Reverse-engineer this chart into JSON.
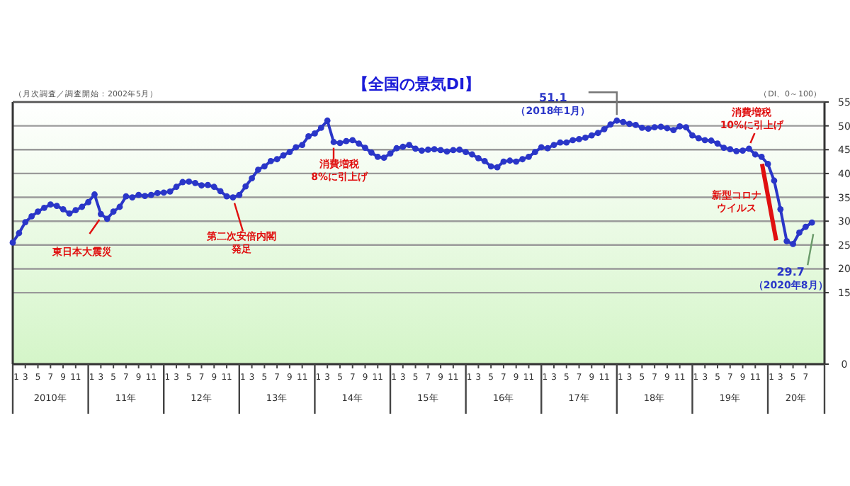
{
  "chart_data": {
    "type": "line",
    "title": "【全国の景気DI】",
    "subtitle": "（月次調査／調査開始：2002年5月）",
    "ylabel": "（DI、0～100）",
    "x": [
      "2010-01",
      "2010-02",
      "2010-03",
      "2010-04",
      "2010-05",
      "2010-06",
      "2010-07",
      "2010-08",
      "2010-09",
      "2010-10",
      "2010-11",
      "2010-12",
      "2011-01",
      "2011-02",
      "2011-03",
      "2011-04",
      "2011-05",
      "2011-06",
      "2011-07",
      "2011-08",
      "2011-09",
      "2011-10",
      "2011-11",
      "2011-12",
      "2012-01",
      "2012-02",
      "2012-03",
      "2012-04",
      "2012-05",
      "2012-06",
      "2012-07",
      "2012-08",
      "2012-09",
      "2012-10",
      "2012-11",
      "2012-12",
      "2013-01",
      "2013-02",
      "2013-03",
      "2013-04",
      "2013-05",
      "2013-06",
      "2013-07",
      "2013-08",
      "2013-09",
      "2013-10",
      "2013-11",
      "2013-12",
      "2014-01",
      "2014-02",
      "2014-03",
      "2014-04",
      "2014-05",
      "2014-06",
      "2014-07",
      "2014-08",
      "2014-09",
      "2014-10",
      "2014-11",
      "2014-12",
      "2015-01",
      "2015-02",
      "2015-03",
      "2015-04",
      "2015-05",
      "2015-06",
      "2015-07",
      "2015-08",
      "2015-09",
      "2015-10",
      "2015-11",
      "2015-12",
      "2016-01",
      "2016-02",
      "2016-03",
      "2016-04",
      "2016-05",
      "2016-06",
      "2016-07",
      "2016-08",
      "2016-09",
      "2016-10",
      "2016-11",
      "2016-12",
      "2017-01",
      "2017-02",
      "2017-03",
      "2017-04",
      "2017-05",
      "2017-06",
      "2017-07",
      "2017-08",
      "2017-09",
      "2017-10",
      "2017-11",
      "2017-12",
      "2018-01",
      "2018-02",
      "2018-03",
      "2018-04",
      "2018-05",
      "2018-06",
      "2018-07",
      "2018-08",
      "2018-09",
      "2018-10",
      "2018-11",
      "2018-12",
      "2019-01",
      "2019-02",
      "2019-03",
      "2019-04",
      "2019-05",
      "2019-06",
      "2019-07",
      "2019-08",
      "2019-09",
      "2019-10",
      "2019-11",
      "2019-12",
      "2020-01",
      "2020-02",
      "2020-03",
      "2020-04",
      "2020-05",
      "2020-06",
      "2020-07",
      "2020-08"
    ],
    "series": [
      {
        "color": "#2a36c8",
        "values": [
          25.5,
          27.5,
          29.8,
          31.0,
          32.0,
          32.8,
          33.5,
          33.2,
          32.5,
          31.6,
          32.3,
          33.0,
          34.0,
          35.6,
          31.5,
          30.5,
          32.0,
          33.0,
          35.2,
          35.0,
          35.5,
          35.3,
          35.5,
          35.9,
          36.0,
          36.2,
          37.2,
          38.2,
          38.3,
          38.0,
          37.5,
          37.6,
          37.2,
          36.3,
          35.2,
          35.0,
          35.5,
          37.3,
          39.0,
          40.8,
          41.5,
          42.6,
          43.0,
          43.8,
          44.5,
          45.5,
          46.0,
          47.8,
          48.4,
          49.6,
          51.1,
          46.6,
          46.4,
          46.8,
          47.0,
          46.3,
          45.4,
          44.4,
          43.5,
          43.3,
          44.2,
          45.3,
          45.6,
          46.0,
          45.2,
          44.8,
          45.0,
          45.1,
          44.9,
          44.6,
          44.9,
          45.0,
          44.5,
          44.0,
          43.2,
          42.6,
          41.5,
          41.3,
          42.5,
          42.7,
          42.5,
          43.0,
          43.5,
          44.5,
          45.5,
          45.3,
          46.0,
          46.5,
          46.5,
          47.0,
          47.2,
          47.5,
          48.0,
          48.5,
          49.3,
          50.3,
          51.1,
          50.8,
          50.4,
          50.2,
          49.6,
          49.4,
          49.7,
          49.8,
          49.5,
          49.1,
          49.9,
          49.7,
          48.0,
          47.4,
          47.0,
          46.9,
          46.3,
          45.4,
          45.1,
          44.7,
          44.8,
          45.2,
          44.0,
          43.5,
          42.0,
          38.5,
          32.5,
          25.8,
          25.2,
          27.6,
          28.8,
          29.7
        ]
      }
    ],
    "xlim": [
      "2010-01",
      "2020-10"
    ],
    "xticks": [
      {
        "value": "2010-01",
        "label": "1"
      },
      {
        "value": "2010-03",
        "label": "3"
      },
      {
        "value": "2010-05",
        "label": "5"
      },
      {
        "value": "2010-07",
        "label": "7"
      },
      {
        "value": "2010-09",
        "label": "9"
      },
      {
        "value": "2010-11",
        "label": "11"
      },
      {
        "value": "2011-01",
        "label": "1"
      },
      {
        "value": "2011-03",
        "label": "3"
      },
      {
        "value": "2011-05",
        "label": "5"
      },
      {
        "value": "2011-07",
        "label": "7"
      },
      {
        "value": "2011-09",
        "label": "9"
      },
      {
        "value": "2011-11",
        "label": "11"
      },
      {
        "value": "2012-01",
        "label": "1"
      },
      {
        "value": "2012-03",
        "label": "3"
      },
      {
        "value": "2012-05",
        "label": "5"
      },
      {
        "value": "2012-07",
        "label": "7"
      },
      {
        "value": "2012-09",
        "label": "9"
      },
      {
        "value": "2012-11",
        "label": "11"
      },
      {
        "value": "2013-01",
        "label": "1"
      },
      {
        "value": "2013-03",
        "label": "3"
      },
      {
        "value": "2013-05",
        "label": "5"
      },
      {
        "value": "2013-07",
        "label": "7"
      },
      {
        "value": "2013-09",
        "label": "9"
      },
      {
        "value": "2013-11",
        "label": "11"
      },
      {
        "value": "2014-01",
        "label": "1"
      },
      {
        "value": "2014-03",
        "label": "3"
      },
      {
        "value": "2014-05",
        "label": "5"
      },
      {
        "value": "2014-07",
        "label": "7"
      },
      {
        "value": "2014-09",
        "label": "9"
      },
      {
        "value": "2014-11",
        "label": "11"
      },
      {
        "value": "2015-01",
        "label": "1"
      },
      {
        "value": "2015-03",
        "label": "3"
      },
      {
        "value": "2015-05",
        "label": "5"
      },
      {
        "value": "2015-07",
        "label": "7"
      },
      {
        "value": "2015-09",
        "label": "9"
      },
      {
        "value": "2015-11",
        "label": "11"
      },
      {
        "value": "2016-01",
        "label": "1"
      },
      {
        "value": "2016-03",
        "label": "3"
      },
      {
        "value": "2016-05",
        "label": "5"
      },
      {
        "value": "2016-07",
        "label": "7"
      },
      {
        "value": "2016-09",
        "label": "9"
      },
      {
        "value": "2016-11",
        "label": "11"
      },
      {
        "value": "2017-01",
        "label": "1"
      },
      {
        "value": "2017-03",
        "label": "3"
      },
      {
        "value": "2017-05",
        "label": "5"
      },
      {
        "value": "2017-07",
        "label": "7"
      },
      {
        "value": "2017-09",
        "label": "9"
      },
      {
        "value": "2017-11",
        "label": "11"
      },
      {
        "value": "2018-01",
        "label": "1"
      },
      {
        "value": "2018-03",
        "label": "3"
      },
      {
        "value": "2018-05",
        "label": "5"
      },
      {
        "value": "2018-07",
        "label": "7"
      },
      {
        "value": "2018-09",
        "label": "9"
      },
      {
        "value": "2018-11",
        "label": "11"
      },
      {
        "value": "2019-01",
        "label": "1"
      },
      {
        "value": "2019-03",
        "label": "3"
      },
      {
        "value": "2019-05",
        "label": "5"
      },
      {
        "value": "2019-07",
        "label": "7"
      },
      {
        "value": "2019-09",
        "label": "9"
      },
      {
        "value": "2019-11",
        "label": "11"
      },
      {
        "value": "2020-01",
        "label": "1"
      },
      {
        "value": "2020-03",
        "label": "3"
      },
      {
        "value": "2020-05",
        "label": "5"
      },
      {
        "value": "2020-07",
        "label": "7"
      }
    ],
    "ylim": [
      0,
      55
    ],
    "yticks": [
      0,
      15,
      20,
      25,
      30,
      35,
      40,
      45,
      50,
      55
    ],
    "grid": "y",
    "marker": "circle",
    "line_style": "solid",
    "annotations": [
      {
        "text": "東日本大震災",
        "x": "2011-03",
        "y": 31.5
      },
      {
        "text": "第二次安倍内閣発足",
        "x": "2012-12",
        "y": 35.0
      },
      {
        "text": "消費増税8%に引上げ",
        "x": "2014-04",
        "y": 46.6
      },
      {
        "text": "51.1\n（2018年1月）",
        "x": "2018-01",
        "y": 51.1
      },
      {
        "text": "消費増税10%に引上げ",
        "x": "2019-10",
        "y": 45.2
      },
      {
        "text": "新型コロナウイルス",
        "x": "2020-03",
        "y": 32.5
      },
      {
        "text": "29.7\n（2020年8月）",
        "x": "2020-08",
        "y": 29.7
      },
      "2010年",
      "11年",
      "12年",
      "13年",
      "14年",
      "15年",
      "16年",
      "17年",
      "18年",
      "19年",
      "20年"
    ]
  }
}
